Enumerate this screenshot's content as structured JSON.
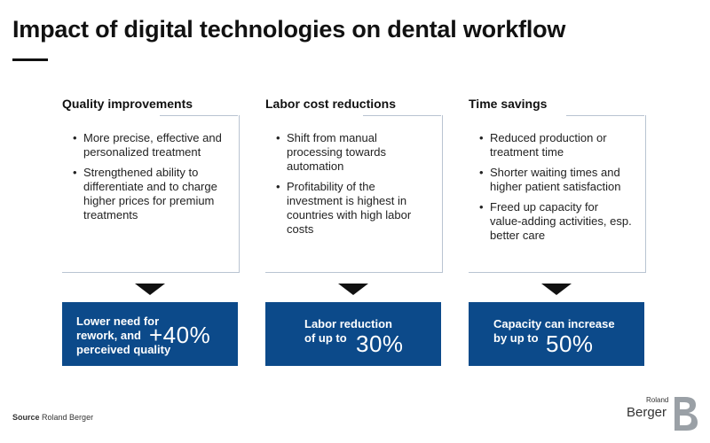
{
  "title": "Impact of digital technologies on dental workflow",
  "columns": [
    {
      "heading": "Quality improvements",
      "bullets": [
        "More precise, effective and personalized treatment",
        "Strengthened ability to differentiate and to charge higher prices for premium treatments"
      ],
      "result_label": "Lower need for rework, and perceived quality",
      "result_value": "+40%"
    },
    {
      "heading": "Labor cost reductions",
      "bullets": [
        "Shift from manual processing towards automation",
        "Profitability of the investment is highest in countries with high labor costs"
      ],
      "result_label": "Labor reduction of up to",
      "result_value": "30%"
    },
    {
      "heading": "Time savings",
      "bullets": [
        "Reduced production or treatment time",
        "Shorter waiting times and higher patient satisfaction",
        "Freed up capacity for value-adding activities, esp. better care"
      ],
      "result_label": "Capacity can increase by up to",
      "result_value": "50%"
    }
  ],
  "source": {
    "label": "Source",
    "text": "Roland Berger"
  },
  "logo": {
    "line1": "Roland",
    "line2": "Berger"
  },
  "colors": {
    "result_bg": "#0c4a8a",
    "box_border": "#b9c4d2"
  }
}
